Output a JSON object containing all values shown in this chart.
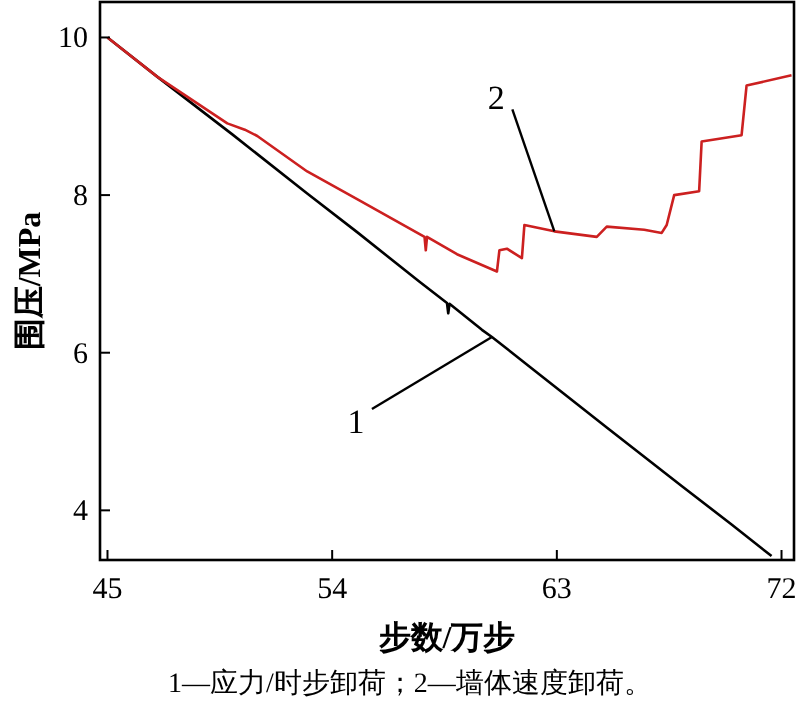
{
  "chart_data": {
    "type": "line",
    "xlabel": "步数/万步",
    "ylabel": "围压/MPa",
    "xlim": [
      44.7,
      72.5
    ],
    "ylim": [
      3.37,
      10.45
    ],
    "xticks": [
      45,
      54,
      63,
      72
    ],
    "yticks": [
      4,
      6,
      8,
      10
    ],
    "grid": false,
    "series": [
      {
        "color": "#000000",
        "x": [
          45,
          47,
          50,
          53,
          55,
          57.5,
          58.6,
          58.65,
          58.7,
          60,
          60.4,
          62,
          65,
          68,
          70,
          71.6
        ],
        "values": [
          10,
          9.5,
          8.77,
          8.02,
          7.53,
          6.9,
          6.63,
          6.5,
          6.62,
          6.29,
          6.2,
          5.8,
          5.05,
          4.31,
          3.82,
          3.42
        ]
      },
      {
        "color": "#cc2020",
        "x": [
          45,
          47,
          49.8,
          50.5,
          51,
          53,
          55,
          57.7,
          57.75,
          57.8,
          59,
          60.6,
          60.7,
          61.0,
          61.6,
          61.7,
          62.9,
          64.6,
          65.0,
          66.5,
          67.2,
          67.4,
          67.7,
          68.7,
          68.8,
          70.4,
          70.6,
          72.4
        ],
        "values": [
          10,
          9.5,
          8.91,
          8.83,
          8.75,
          8.3,
          7.95,
          7.47,
          7.3,
          7.47,
          7.25,
          7.03,
          7.3,
          7.32,
          7.2,
          7.62,
          7.54,
          7.47,
          7.6,
          7.56,
          7.52,
          7.62,
          8.0,
          8.05,
          8.68,
          8.76,
          9.39,
          9.52
        ]
      }
    ],
    "annotations": [
      {
        "text": "1",
        "x": 60.4,
        "y": 6.2
      },
      {
        "text": "2",
        "x": 62.9,
        "y": 7.54
      },
      "1—应力/时步卸荷；2—墙体速度卸荷。"
    ]
  }
}
